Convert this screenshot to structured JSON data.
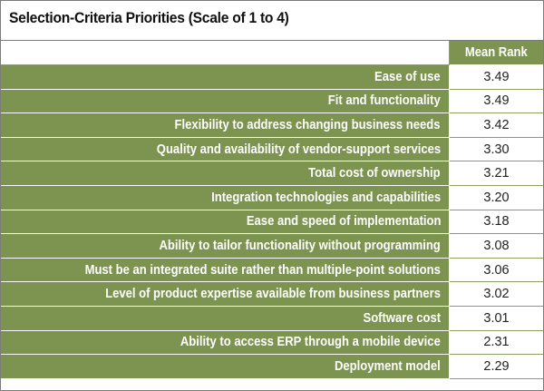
{
  "chart_data": {
    "type": "table",
    "title": "Selection-Criteria Priorities (Scale of 1 to 4)",
    "column_header": "Mean Rank",
    "categories": [
      "Ease of use",
      "Fit and functionality",
      "Flexibility to address changing business needs",
      "Quality and availability of vendor-support services",
      "Total cost of ownership",
      "Integration technologies and capabilities",
      "Ease and speed of implementation",
      "Ability to tailor functionality without programming",
      "Must be an integrated suite rather than multiple-point solutions",
      "Level of product expertise available from business partners",
      "Software cost",
      "Ability to access ERP through a mobile device",
      "Deployment model"
    ],
    "values": [
      "3.49",
      "3.49",
      "3.42",
      "3.30",
      "3.21",
      "3.20",
      "3.18",
      "3.08",
      "3.06",
      "3.02",
      "3.01",
      "2.31",
      "2.29"
    ]
  },
  "colors": {
    "label_fill": "#7d9450",
    "grid_line": "#8aa05c",
    "frame": "#7b7b7b"
  }
}
